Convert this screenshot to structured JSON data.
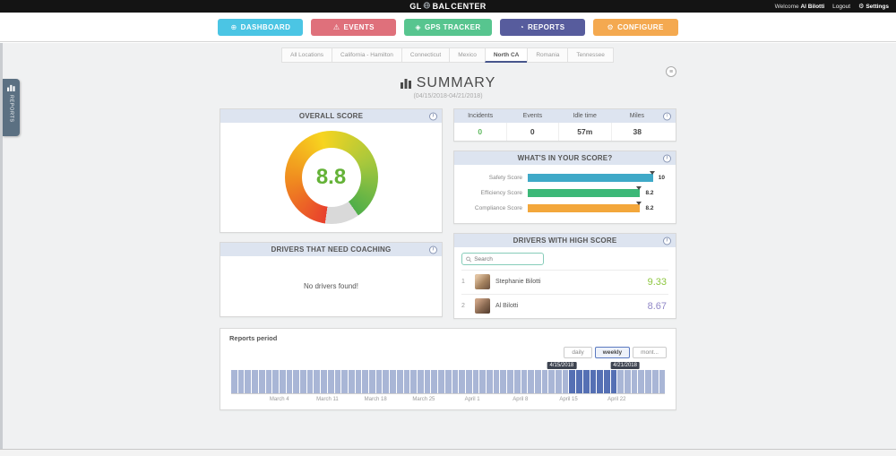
{
  "topbar": {
    "logo_part1": "GL",
    "logo_part2": "BAL",
    "logo_part3": "CENTER",
    "welcome": "Welcome",
    "user": "Al Bilotti",
    "logout": "Logout",
    "settings": "Settings"
  },
  "nav": {
    "items": [
      {
        "label": "DASHBOARD",
        "color": "#4bc5e4"
      },
      {
        "label": "EVENTS",
        "color": "#df707b"
      },
      {
        "label": "GPS TRACKER",
        "color": "#57c58f"
      },
      {
        "label": "REPORTS",
        "color": "#575c9d"
      },
      {
        "label": "CONFIGURE",
        "color": "#f4a950"
      }
    ]
  },
  "side_flap": {
    "label": "REPORTS"
  },
  "tabs": {
    "items": [
      {
        "label": "All Locations",
        "active": false
      },
      {
        "label": "California - Hamilton",
        "active": false
      },
      {
        "label": "Connecticut",
        "active": false
      },
      {
        "label": "Mexico",
        "active": false
      },
      {
        "label": "North CA",
        "active": true
      },
      {
        "label": "Romania",
        "active": false
      },
      {
        "label": "Tennessee",
        "active": false
      }
    ]
  },
  "summary": {
    "title": "SUMMARY",
    "date_range": "(04/15/2018-04/21/2018)"
  },
  "overall_score": {
    "title": "OVERALL SCORE",
    "value": "8.8",
    "max": 10,
    "value_color": "#64b237",
    "gauge_colors": [
      "#e8402d",
      "#f08c1f",
      "#f7d41f",
      "#a8c83c",
      "#4fae49"
    ],
    "remainder_color": "#d9d9d9"
  },
  "stats": {
    "columns": [
      {
        "label": "Incidents",
        "value": "0",
        "value_color": "#5cb85c"
      },
      {
        "label": "Events",
        "value": "0",
        "value_color": "#444444"
      },
      {
        "label": "Idle time",
        "value": "57m",
        "value_color": "#444444"
      },
      {
        "label": "Miles",
        "value": "38",
        "value_color": "#444444"
      }
    ]
  },
  "score_breakdown": {
    "title": "WHAT'S IN YOUR SCORE?",
    "max": 10,
    "rows": [
      {
        "label": "Safety Score",
        "value": 10,
        "display": "10",
        "color": "#3fa9c8"
      },
      {
        "label": "Efficiency Score",
        "value": 8.2,
        "display": "8.2",
        "color": "#3cb878"
      },
      {
        "label": "Compliance Score",
        "value": 8.2,
        "display": "8.2",
        "color": "#f3a73b"
      }
    ]
  },
  "coaching": {
    "title": "DRIVERS THAT NEED COACHING",
    "empty_message": "No drivers found!"
  },
  "high_score": {
    "title": "DRIVERS WITH HIGH SCORE",
    "search_placeholder": "Search",
    "drivers": [
      {
        "rank": "1",
        "name": "Stephanie Bilotti",
        "score": "9.33",
        "score_color": "#8cc63e"
      },
      {
        "rank": "2",
        "name": "Al Bilotti",
        "score": "8.67",
        "score_color": "#9188c7"
      }
    ]
  },
  "reports_period": {
    "title": "Reports period",
    "buttons": [
      {
        "label": "daily",
        "active": false
      },
      {
        "label": "weekly",
        "active": true
      },
      {
        "label": "mont...",
        "active": false
      }
    ],
    "range_tooltips": [
      {
        "label": "4/15/2018",
        "position_pct": 76
      },
      {
        "label": "4/21/2018",
        "position_pct": 90.5
      }
    ],
    "chart_data": {
      "type": "bar",
      "description": "Report period selector timeline, uniform daily bars with selected week highlighted",
      "bar_count": 63,
      "uniform_value": 1,
      "selected_range": [
        49,
        55
      ],
      "selected_dates": [
        "4/15/2018",
        "4/21/2018"
      ],
      "bar_color": "#a9b6d6",
      "selected_color": "#5570b4",
      "x_tick_labels": [
        "March 4",
        "March 11",
        "March 18",
        "March 25",
        "April 1",
        "April 8",
        "April 15",
        "April 22"
      ],
      "x_tick_positions_pct": [
        11.1,
        22.2,
        33.3,
        44.4,
        55.6,
        66.7,
        77.8,
        88.9
      ]
    }
  }
}
